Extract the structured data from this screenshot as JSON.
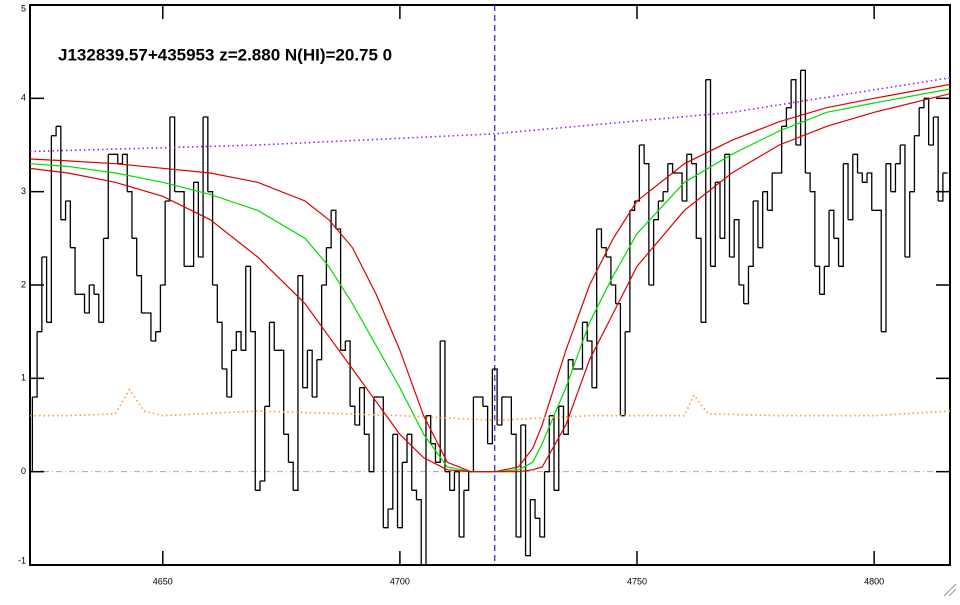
{
  "chart_data": {
    "type": "line",
    "annotation": "J132839.57+435953 z=2.880 N(HI)=20.75 0",
    "xlim": [
      4622,
      4816
    ],
    "ylim": [
      -1,
      5
    ],
    "xticks": [
      4650,
      4700,
      4750,
      4800
    ],
    "yticks": [
      -1,
      0,
      1,
      2,
      3,
      4,
      5
    ],
    "zero_line": 0,
    "zero_line_color": "#aaaaaa",
    "marker_line_x": 4720,
    "marker_line_color": "#2222cc",
    "series": [
      {
        "style": "step",
        "color": "#000000",
        "x": [
          4622,
          4623,
          4624,
          4625,
          4626,
          4627,
          4628,
          4629,
          4630,
          4631,
          4632,
          4633,
          4634,
          4635,
          4636,
          4637,
          4638,
          4639,
          4640,
          4641,
          4642,
          4643,
          4644,
          4645,
          4646,
          4647,
          4648,
          4649,
          4650,
          4651,
          4652,
          4653,
          4654,
          4655,
          4656,
          4657,
          4658,
          4659,
          4660,
          4661,
          4662,
          4663,
          4664,
          4665,
          4666,
          4667,
          4668,
          4669,
          4670,
          4671,
          4672,
          4673,
          4674,
          4675,
          4676,
          4677,
          4678,
          4679,
          4680,
          4681,
          4682,
          4683,
          4684,
          4685,
          4686,
          4687,
          4688,
          4689,
          4690,
          4691,
          4692,
          4693,
          4694,
          4695,
          4696,
          4697,
          4698,
          4699,
          4700,
          4701,
          4702,
          4703,
          4704,
          4705,
          4706,
          4707,
          4708,
          4709,
          4710,
          4711,
          4712,
          4713,
          4714,
          4715,
          4716,
          4717,
          4718,
          4719,
          4720,
          4721,
          4722,
          4723,
          4724,
          4725,
          4726,
          4727,
          4728,
          4729,
          4730,
          4731,
          4732,
          4733,
          4734,
          4735,
          4736,
          4737,
          4738,
          4739,
          4740,
          4741,
          4742,
          4743,
          4744,
          4745,
          4746,
          4747,
          4748,
          4749,
          4750,
          4751,
          4752,
          4753,
          4754,
          4755,
          4756,
          4757,
          4758,
          4759,
          4760,
          4761,
          4762,
          4763,
          4764,
          4765,
          4766,
          4767,
          4768,
          4769,
          4770,
          4771,
          4772,
          4773,
          4774,
          4775,
          4776,
          4777,
          4778,
          4779,
          4780,
          4781,
          4782,
          4783,
          4784,
          4785,
          4786,
          4787,
          4788,
          4789,
          4790,
          4791,
          4792,
          4793,
          4794,
          4795,
          4796,
          4797,
          4798,
          4799,
          4800,
          4801,
          4802,
          4803,
          4804,
          4805,
          4806,
          4807,
          4808,
          4809,
          4810,
          4811,
          4812,
          4813,
          4814,
          4815
        ],
        "values": [
          0.0,
          0.8,
          1.5,
          2.3,
          1.6,
          3.6,
          3.7,
          2.7,
          2.9,
          2.4,
          1.9,
          1.9,
          1.7,
          2.0,
          1.9,
          1.6,
          2.5,
          3.4,
          3.4,
          3.3,
          3.4,
          3.0,
          2.5,
          2.1,
          1.7,
          1.7,
          1.4,
          1.5,
          2.0,
          2.9,
          3.8,
          3.0,
          3.0,
          2.2,
          2.2,
          3.1,
          2.3,
          3.8,
          3.0,
          2.0,
          1.6,
          1.1,
          0.8,
          1.3,
          1.5,
          1.3,
          2.2,
          1.5,
          -0.2,
          -0.1,
          0.7,
          1.6,
          1.3,
          1.3,
          0.4,
          0.1,
          -0.2,
          2.1,
          0.9,
          1.3,
          0.8,
          1.2,
          2.0,
          2.4,
          2.8,
          2.6,
          1.3,
          1.4,
          0.7,
          0.5,
          0.9,
          0.4,
          0.0,
          0.8,
          0.8,
          -0.6,
          -0.4,
          0.4,
          -0.6,
          0.1,
          0.4,
          -0.2,
          -0.3,
          -1.0,
          0.6,
          0.3,
          0.1,
          1.4,
          0.0,
          -0.2,
          0.0,
          -0.7,
          -0.2,
          0.0,
          0.8,
          0.8,
          0.7,
          0.3,
          1.1,
          0.5,
          0.8,
          0.8,
          0.4,
          -0.7,
          0.5,
          -0.9,
          -0.3,
          -0.5,
          -0.7,
          0.0,
          0.6,
          -0.2,
          0.7,
          0.4,
          1.2,
          1.1,
          1.1,
          1.6,
          1.4,
          0.9,
          2.6,
          2.4,
          2.3,
          2.0,
          1.8,
          0.6,
          1.5,
          2.8,
          2.9,
          3.5,
          3.3,
          2.0,
          2.7,
          2.9,
          3.0,
          3.3,
          3.2,
          3.2,
          2.9,
          3.4,
          3.3,
          2.5,
          1.6,
          4.2,
          2.2,
          3.1,
          2.5,
          3.4,
          2.3,
          2.7,
          2.0,
          1.8,
          2.2,
          2.9,
          2.4,
          3.0,
          2.8,
          3.2,
          3.2,
          3.7,
          3.9,
          4.2,
          3.5,
          4.3,
          3.2,
          3.0,
          2.2,
          1.9,
          2.2,
          2.8,
          2.5,
          2.2,
          3.3,
          2.7,
          3.4,
          3.2,
          3.1,
          3.2,
          2.8,
          2.8,
          1.5,
          3.3,
          3.0,
          3.3,
          3.5,
          2.3,
          3.0,
          3.6,
          3.9,
          4.0,
          3.5,
          3.8,
          2.9,
          3.2
        ]
      },
      {
        "style": "solid",
        "color": "#dd0000",
        "x": [
          4622,
          4630,
          4640,
          4650,
          4660,
          4670,
          4680,
          4685,
          4690,
          4695,
          4700,
          4705,
          4710,
          4715,
          4720,
          4725,
          4728,
          4730,
          4735,
          4740,
          4745,
          4750,
          4760,
          4770,
          4780,
          4790,
          4800,
          4816
        ],
        "values": [
          3.35,
          3.33,
          3.3,
          3.25,
          3.2,
          3.1,
          2.9,
          2.7,
          2.4,
          1.9,
          1.3,
          0.6,
          0.1,
          0,
          0,
          0.05,
          0.25,
          0.5,
          1.3,
          2.0,
          2.5,
          2.9,
          3.3,
          3.55,
          3.75,
          3.9,
          4.0,
          4.15
        ]
      },
      {
        "style": "solid",
        "color": "#00dd00",
        "x": [
          4622,
          4630,
          4640,
          4650,
          4660,
          4670,
          4680,
          4685,
          4690,
          4695,
          4700,
          4705,
          4710,
          4715,
          4720,
          4725,
          4728,
          4730,
          4735,
          4740,
          4745,
          4750,
          4760,
          4770,
          4780,
          4790,
          4800,
          4816
        ],
        "values": [
          3.3,
          3.27,
          3.2,
          3.1,
          2.97,
          2.8,
          2.5,
          2.2,
          1.8,
          1.35,
          0.9,
          0.4,
          0.05,
          0,
          0,
          0.02,
          0.1,
          0.3,
          0.9,
          1.6,
          2.1,
          2.55,
          3.1,
          3.4,
          3.65,
          3.85,
          3.95,
          4.1
        ]
      },
      {
        "style": "solid",
        "color": "#dd0000",
        "x": [
          4622,
          4630,
          4640,
          4650,
          4660,
          4670,
          4680,
          4685,
          4690,
          4695,
          4700,
          4705,
          4710,
          4715,
          4720,
          4725,
          4728,
          4730,
          4735,
          4740,
          4745,
          4750,
          4760,
          4770,
          4780,
          4790,
          4800,
          4816
        ],
        "values": [
          3.25,
          3.2,
          3.1,
          2.95,
          2.7,
          2.3,
          1.8,
          1.45,
          1.1,
          0.75,
          0.4,
          0.15,
          0.02,
          0,
          0,
          0,
          0.02,
          0.05,
          0.5,
          1.2,
          1.7,
          2.2,
          2.8,
          3.2,
          3.5,
          3.7,
          3.85,
          4.05
        ]
      },
      {
        "style": "dotted",
        "color": "#9922ee",
        "x": [
          4622,
          4670,
          4720,
          4770,
          4816
        ],
        "values": [
          3.43,
          3.5,
          3.62,
          3.85,
          4.22
        ]
      },
      {
        "style": "dotted",
        "color": "#ff9933",
        "x": [
          4622,
          4630,
          4640,
          4643,
          4646,
          4650,
          4670,
          4700,
          4720,
          4740,
          4760,
          4762,
          4765,
          4780,
          4800,
          4816
        ],
        "values": [
          0.6,
          0.6,
          0.62,
          0.88,
          0.65,
          0.6,
          0.65,
          0.6,
          0.55,
          0.6,
          0.6,
          0.82,
          0.62,
          0.6,
          0.6,
          0.65
        ]
      }
    ]
  }
}
